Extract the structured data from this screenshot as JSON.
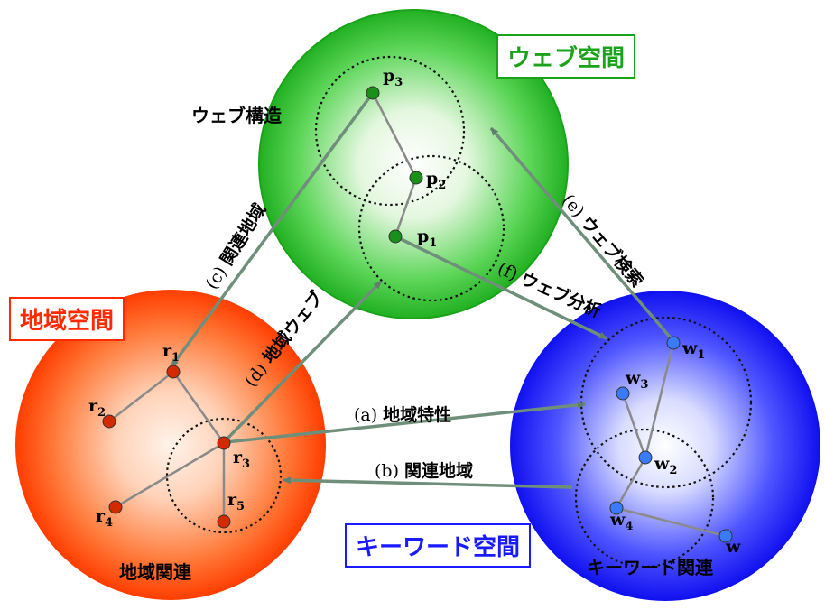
{
  "spaces": {
    "web": {
      "label": "ウェブ空間",
      "color": "#1aa31a"
    },
    "region": {
      "label": "地域空間",
      "color": "#ff2a00"
    },
    "keyword": {
      "label": "キーワード空間",
      "color": "#1a1aff"
    }
  },
  "structures": {
    "web": "ウェブ構造",
    "region": "地域関連",
    "keyword": "キーワード関連"
  },
  "nodes": {
    "p1": {
      "base": "p",
      "sub": "1"
    },
    "p2": {
      "base": "p",
      "sub": "2"
    },
    "p3": {
      "base": "p",
      "sub": "3"
    },
    "r1": {
      "base": "r",
      "sub": "1"
    },
    "r2": {
      "base": "r",
      "sub": "2"
    },
    "r3": {
      "base": "r",
      "sub": "3"
    },
    "r4": {
      "base": "r",
      "sub": "4"
    },
    "r5": {
      "base": "r",
      "sub": "5"
    },
    "w1": {
      "base": "w",
      "sub": "1"
    },
    "w2": {
      "base": "w",
      "sub": "2"
    },
    "w3": {
      "base": "w",
      "sub": "3"
    },
    "w4": {
      "base": "w",
      "sub": "4"
    },
    "w5": {
      "base": "w",
      "sub": ""
    }
  },
  "relations": {
    "a": {
      "tag": "(a)",
      "text": "地域特性"
    },
    "b": {
      "tag": "(b)",
      "text": "関連地域"
    },
    "c": {
      "tag": "(c)",
      "text": "関連地域"
    },
    "d": {
      "tag": "(d)",
      "text": "地域ウェブ"
    },
    "e": {
      "tag": "(e)",
      "text": "ウェブ検索"
    },
    "f": {
      "tag": "(f)",
      "text": "ウェブ分析"
    }
  },
  "colors": {
    "green_node": "#1a8f1a",
    "red_node": "#d42a00",
    "blue_node": "#3a7aff",
    "edge": "#8a8a8a",
    "arrow": "#6f8f6f"
  }
}
